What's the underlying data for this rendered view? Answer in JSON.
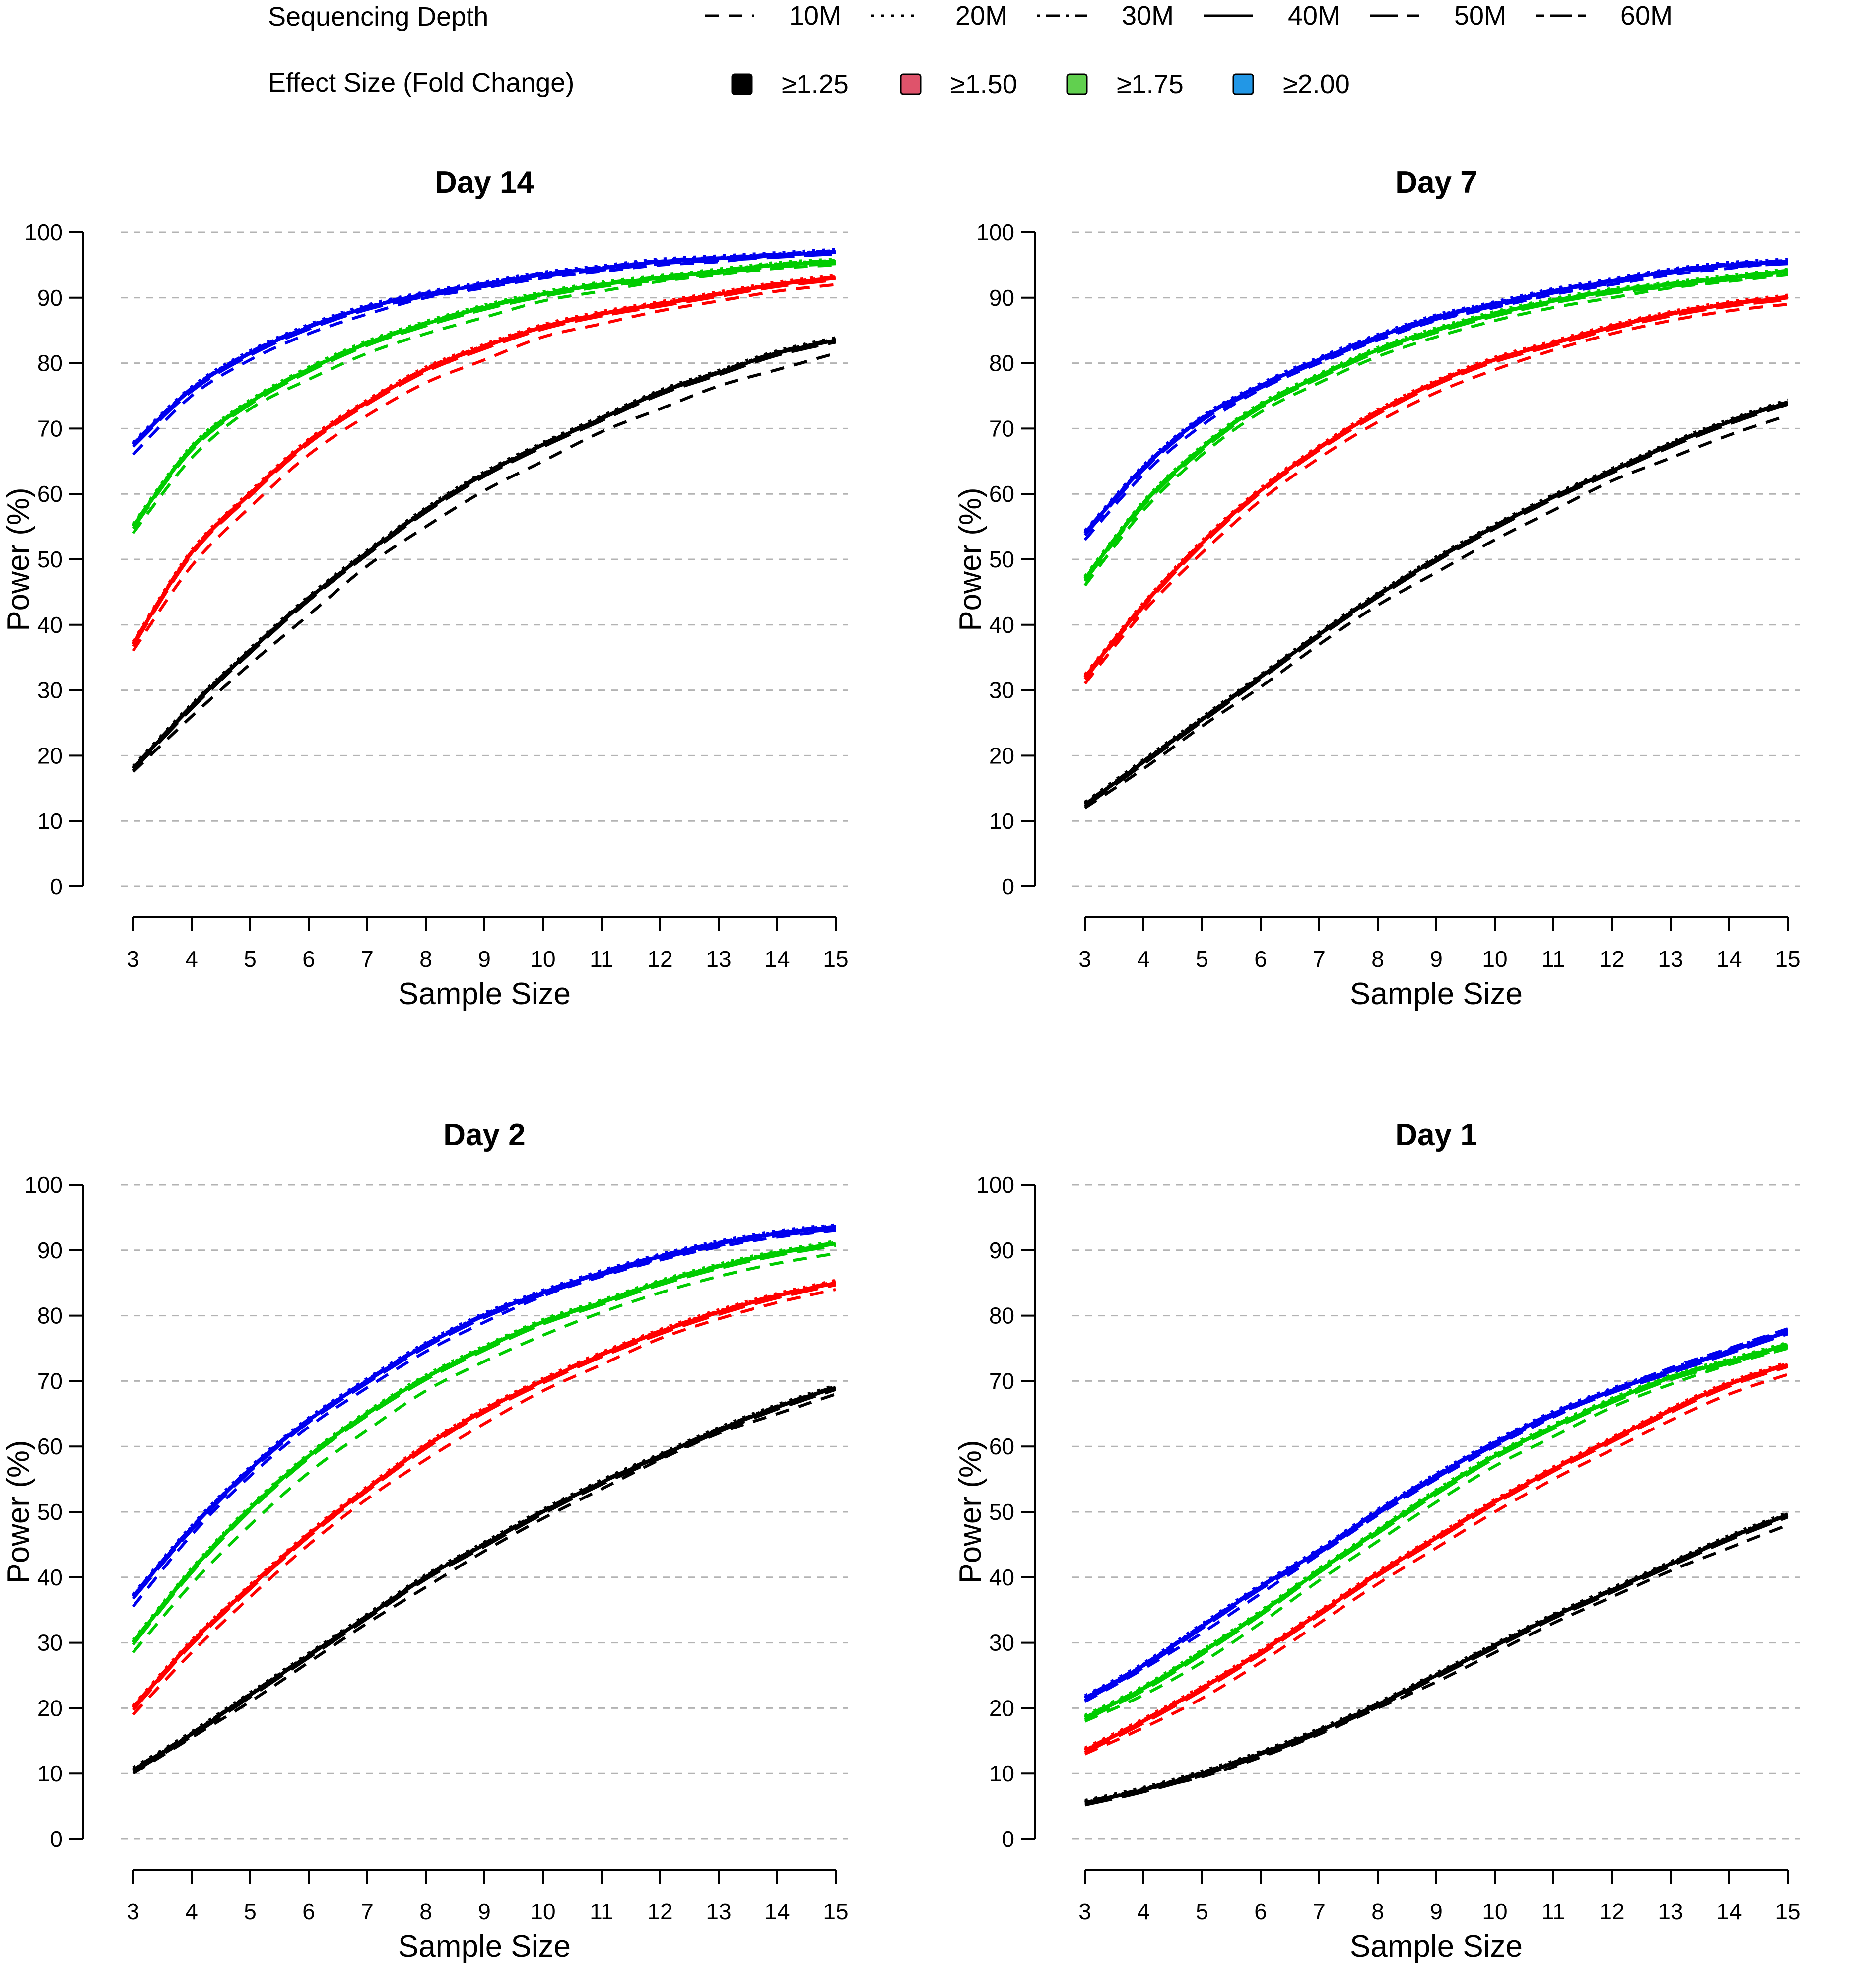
{
  "legend": {
    "depth_title": "Sequencing Depth",
    "effect_title": "Effect Size (Fold Change)",
    "depth_entries": [
      {
        "label": "10M",
        "dash": "dashed"
      },
      {
        "label": "20M",
        "dash": "dotted"
      },
      {
        "label": "30M",
        "dash": "dotdash"
      },
      {
        "label": "40M",
        "dash": "solid"
      },
      {
        "label": "50M",
        "dash": "longdash"
      },
      {
        "label": "60M",
        "dash": "twodash"
      }
    ],
    "effect_entries": [
      {
        "label": "≥1.25",
        "color": "#000000"
      },
      {
        "label": "≥1.50",
        "color": "#DF536B"
      },
      {
        "label": "≥1.75",
        "color": "#61D04F"
      },
      {
        "label": "≥2.00",
        "color": "#2297E6"
      }
    ]
  },
  "chart_data": [
    {
      "type": "line",
      "title": "Day 14",
      "xlabel": "Sample Size",
      "ylabel": "Power (%)",
      "x": [
        3,
        4,
        5,
        6,
        7,
        8,
        9,
        10,
        11,
        12,
        13,
        14,
        15
      ],
      "xlim": [
        3,
        15
      ],
      "ylim": [
        0,
        100
      ],
      "yticks": [
        0,
        10,
        20,
        30,
        40,
        50,
        60,
        70,
        80,
        90,
        100
      ],
      "grid": "horizontal dashed",
      "series": [
        {
          "effect": "≥1.25",
          "color": "#000000",
          "values": [
            18,
            27.5,
            36,
            44,
            51,
            57.5,
            63,
            67.5,
            71.5,
            75.5,
            78.5,
            81.5,
            83.5
          ],
          "values_10M": [
            17.5,
            26,
            34,
            41.5,
            49,
            55,
            60.5,
            65,
            69.5,
            73,
            76.5,
            79,
            81.5
          ]
        },
        {
          "effect": "≥1.50",
          "color": "#ff0000",
          "values": [
            37,
            51,
            60,
            68,
            74,
            79,
            82.5,
            85.5,
            87.5,
            89,
            90.5,
            92,
            93
          ],
          "values_10M": [
            36,
            49,
            58,
            66,
            72,
            77,
            80.5,
            84,
            86,
            88,
            89.5,
            91,
            92
          ]
        },
        {
          "effect": "≥1.75",
          "color": "#00cc00",
          "values": [
            55,
            67,
            74,
            79,
            83,
            86,
            88.5,
            90.5,
            92,
            93,
            94,
            95,
            95.5
          ],
          "values_10M": [
            54,
            65.5,
            73,
            77.5,
            81.5,
            84.5,
            87,
            89.5,
            91,
            92.5,
            93.5,
            94.5,
            95
          ]
        },
        {
          "effect": "≥2.00",
          "color": "#0000ee",
          "values": [
            67.5,
            76,
            81.5,
            85.5,
            88.5,
            90.5,
            92,
            93.5,
            94.5,
            95.5,
            96,
            96.5,
            97
          ],
          "values_10M": [
            66,
            75,
            80.5,
            84.5,
            87.5,
            90,
            91.5,
            93,
            94,
            95,
            95.5,
            96.5,
            97
          ]
        }
      ]
    },
    {
      "type": "line",
      "title": "Day 7",
      "xlabel": "Sample Size",
      "ylabel": "Power (%)",
      "x": [
        3,
        4,
        5,
        6,
        7,
        8,
        9,
        10,
        11,
        12,
        13,
        14,
        15
      ],
      "xlim": [
        3,
        15
      ],
      "ylim": [
        0,
        100
      ],
      "yticks": [
        0,
        10,
        20,
        30,
        40,
        50,
        60,
        70,
        80,
        90,
        100
      ],
      "grid": "horizontal dashed",
      "series": [
        {
          "effect": "≥1.25",
          "color": "#000000",
          "values": [
            12.5,
            19,
            25.5,
            32,
            38.5,
            44.5,
            50,
            55,
            59.5,
            63.5,
            67.5,
            71,
            74
          ],
          "values_10M": [
            12,
            18,
            24.5,
            30.5,
            37,
            43,
            48,
            53,
            57.5,
            62,
            65.5,
            69,
            72
          ]
        },
        {
          "effect": "≥1.50",
          "color": "#ff0000",
          "values": [
            32,
            43,
            52.5,
            60.5,
            67,
            72.5,
            77,
            80.5,
            83,
            85.5,
            87.5,
            89,
            90
          ],
          "values_10M": [
            31,
            42,
            51,
            59,
            65.5,
            71,
            75.5,
            79,
            82,
            84.5,
            86.5,
            88,
            89
          ]
        },
        {
          "effect": "≥1.75",
          "color": "#00cc00",
          "values": [
            47,
            58.5,
            67,
            73.5,
            78,
            82,
            85,
            87.5,
            89.5,
            91,
            92,
            93,
            94
          ],
          "values_10M": [
            46,
            57.5,
            66,
            72.5,
            77,
            81,
            84,
            86.5,
            88.5,
            90,
            91.5,
            92.5,
            93.5
          ]
        },
        {
          "effect": "≥2.00",
          "color": "#0000ee",
          "values": [
            54,
            64,
            71.5,
            76.5,
            80.5,
            84,
            87,
            89,
            91,
            92.5,
            94,
            95,
            95.5
          ],
          "values_10M": [
            53,
            63,
            70.5,
            76,
            80,
            83.5,
            86.5,
            88.5,
            90.5,
            92,
            93.5,
            94.5,
            95.5
          ]
        }
      ]
    },
    {
      "type": "line",
      "title": "Day 2",
      "xlabel": "Sample Size",
      "ylabel": "Power (%)",
      "x": [
        3,
        4,
        5,
        6,
        7,
        8,
        9,
        10,
        11,
        12,
        13,
        14,
        15
      ],
      "xlim": [
        3,
        15
      ],
      "ylim": [
        0,
        100
      ],
      "yticks": [
        0,
        10,
        20,
        30,
        40,
        50,
        60,
        70,
        80,
        90,
        100
      ],
      "grid": "horizontal dashed",
      "series": [
        {
          "effect": "≥1.25",
          "color": "#000000",
          "values": [
            10.5,
            16,
            22,
            28,
            34,
            40,
            45,
            50,
            54.5,
            58.5,
            62.5,
            66,
            69
          ],
          "values_10M": [
            10,
            15.5,
            21,
            27,
            33,
            38.5,
            44,
            49,
            53.5,
            58,
            62,
            65,
            68
          ]
        },
        {
          "effect": "≥1.50",
          "color": "#ff0000",
          "values": [
            20,
            30,
            38.5,
            46.5,
            53.5,
            60,
            65.5,
            70,
            74,
            77.5,
            80.5,
            83,
            85
          ],
          "values_10M": [
            19,
            28.5,
            37,
            45,
            52,
            58,
            63.5,
            68.5,
            72.5,
            76.5,
            79.5,
            82,
            84
          ]
        },
        {
          "effect": "≥1.75",
          "color": "#00cc00",
          "values": [
            30,
            41,
            50.5,
            58.5,
            65,
            70.5,
            75,
            79,
            82,
            85,
            87.5,
            89.5,
            91
          ],
          "values_10M": [
            28.5,
            39,
            48,
            56,
            62.5,
            68.5,
            73,
            77,
            80.5,
            83.5,
            86,
            88,
            89.5
          ]
        },
        {
          "effect": "≥2.00",
          "color": "#0000ee",
          "values": [
            37,
            47.5,
            56.5,
            64,
            70,
            75.5,
            80,
            83.5,
            86.5,
            89,
            91,
            92.5,
            93.5
          ],
          "values_10M": [
            35.5,
            46.5,
            55.5,
            63,
            69,
            74.5,
            79,
            83,
            86,
            88.5,
            90.5,
            92,
            93
          ]
        }
      ]
    },
    {
      "type": "line",
      "title": "Day 1",
      "xlabel": "Sample Size",
      "ylabel": "Power (%)",
      "x": [
        3,
        4,
        5,
        6,
        7,
        8,
        9,
        10,
        11,
        12,
        13,
        14,
        15
      ],
      "xlim": [
        3,
        15
      ],
      "ylim": [
        0,
        100
      ],
      "yticks": [
        0,
        10,
        20,
        30,
        40,
        50,
        60,
        70,
        80,
        90,
        100
      ],
      "grid": "horizontal dashed",
      "series": [
        {
          "effect": "≥1.25",
          "color": "#000000",
          "values": [
            5.5,
            7.5,
            10,
            13,
            16.5,
            20.5,
            25,
            29.5,
            34,
            38,
            42,
            46,
            49.5
          ],
          "values_10M": [
            5.5,
            7.5,
            9.5,
            12.5,
            16,
            20,
            24,
            28.5,
            33,
            37,
            41,
            44.5,
            48
          ]
        },
        {
          "effect": "≥1.50",
          "color": "#ff0000",
          "values": [
            13.5,
            18,
            23,
            28.5,
            34.5,
            40.5,
            46,
            51.5,
            56.5,
            61,
            65.5,
            69.5,
            72.5
          ],
          "values_10M": [
            13,
            17,
            21.5,
            27,
            33,
            39,
            44.5,
            50,
            55,
            59.5,
            64,
            68,
            71
          ]
        },
        {
          "effect": "≥1.75",
          "color": "#00cc00",
          "values": [
            18.5,
            23,
            28.5,
            34.5,
            41,
            47,
            53,
            58.5,
            63,
            67,
            70.5,
            73,
            75.5
          ],
          "values_10M": [
            18,
            22,
            27,
            33,
            39.5,
            45.5,
            51.5,
            57,
            61.5,
            66,
            69.5,
            72.5,
            75
          ]
        },
        {
          "effect": "≥2.00",
          "color": "#0000ee",
          "values": [
            21.5,
            26.5,
            32.5,
            38.5,
            44,
            50,
            55.5,
            60.5,
            65,
            68.5,
            71.5,
            74.5,
            77.5
          ],
          "values_10M": [
            21,
            26,
            31.5,
            37.5,
            43.5,
            49.5,
            55,
            60,
            64.5,
            68.5,
            72,
            75,
            78
          ]
        }
      ]
    }
  ]
}
